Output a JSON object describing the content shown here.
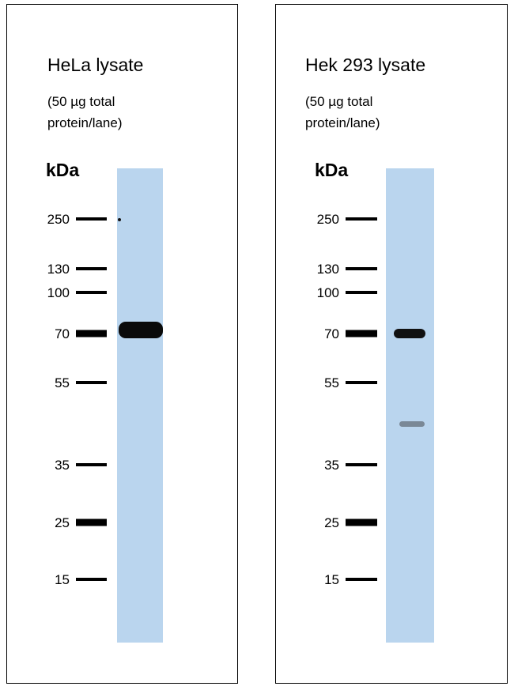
{
  "panels": [
    {
      "title": "HeLa  lysate",
      "note": [
        "(50 µg total",
        "protein/lane)"
      ],
      "unit": "kDa",
      "markers": [
        "250",
        "130",
        "100",
        "70",
        "55",
        "35",
        "25",
        "15"
      ]
    },
    {
      "title": "Hek 293 lysate",
      "note": [
        "(50 µg total",
        "protein/lane)"
      ],
      "unit": "kDa",
      "markers": [
        "250",
        "130",
        "100",
        "70",
        "55",
        "35",
        "25",
        "15"
      ]
    }
  ]
}
